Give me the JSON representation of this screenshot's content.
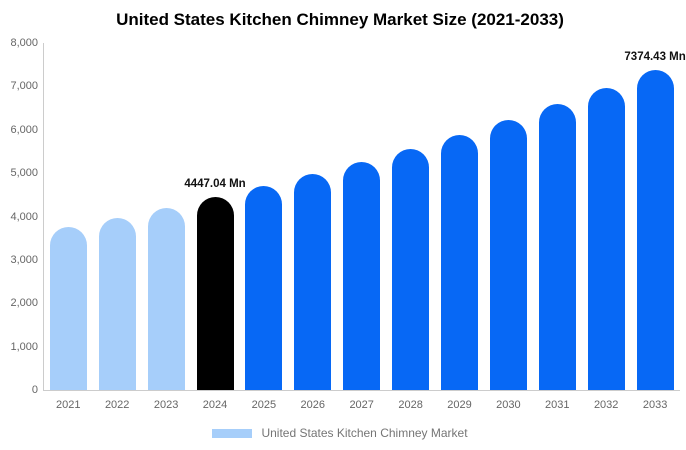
{
  "chart_data": {
    "type": "bar",
    "title": "United States Kitchen Chimney Market Size (2021-2033)",
    "categories": [
      "2021",
      "2022",
      "2023",
      "2024",
      "2025",
      "2026",
      "2027",
      "2028",
      "2029",
      "2030",
      "2031",
      "2032",
      "2033"
    ],
    "series": [
      {
        "name": "United States Kitchen Chimney Market",
        "values": [
          3757.5,
          3974.7,
          4204.4,
          4447.04,
          4704.1,
          4976.0,
          5263.7,
          5567.9,
          5889.7,
          6230.1,
          6590.2,
          6971.1,
          7374.43
        ]
      }
    ],
    "bar_colors": [
      "#A6CEFA",
      "#A6CEFA",
      "#A6CEFA",
      "#000000",
      "#0768F5",
      "#0768F5",
      "#0768F5",
      "#0768F5",
      "#0768F5",
      "#0768F5",
      "#0768F5",
      "#0768F5",
      "#0768F5"
    ],
    "data_labels": [
      {
        "category": "2024",
        "text": "4447.04 Mn"
      },
      {
        "category": "2033",
        "text": "7374.43 Mn"
      }
    ],
    "xlabel": "",
    "ylabel": "",
    "ylim": [
      0,
      8000
    ],
    "y_ticks": [
      {
        "value": 0,
        "label": "0"
      },
      {
        "value": 1000,
        "label": "1,000"
      },
      {
        "value": 2000,
        "label": "2,000"
      },
      {
        "value": 3000,
        "label": "3,000"
      },
      {
        "value": 4000,
        "label": "4,000"
      },
      {
        "value": 5000,
        "label": "5,000"
      },
      {
        "value": 6000,
        "label": "6,000"
      },
      {
        "value": 7000,
        "label": "7,000"
      },
      {
        "value": 8000,
        "label": "8,000"
      }
    ],
    "grid": false,
    "legend": {
      "position": "bottom",
      "items": [
        {
          "label": "United States Kitchen Chimney Market",
          "swatch_color": "#A6CEFA"
        }
      ]
    },
    "colors": {
      "background": "#FFFFFF",
      "axis_line": "#CCCCCC",
      "tick_text": "#666666",
      "title_text": "#000000",
      "data_label_text": "#111111",
      "legend_text": "#757575"
    }
  }
}
